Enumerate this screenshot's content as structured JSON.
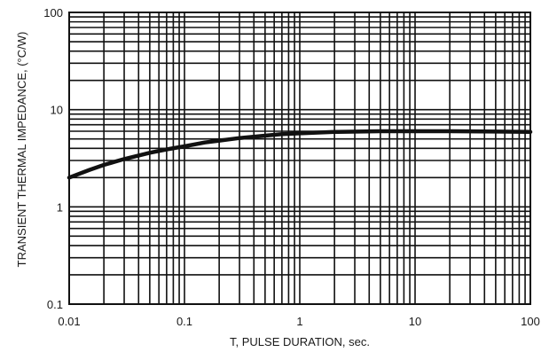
{
  "chart_data": {
    "type": "line",
    "title": "",
    "xlabel": "T, PULSE DURATION, sec.",
    "ylabel": "TRANSIENT THERMAL IMPEDANCE, (°C/W)",
    "x_scale": "log",
    "y_scale": "log",
    "xlim": [
      0.01,
      100
    ],
    "ylim": [
      0.1,
      100
    ],
    "x_ticks": [
      {
        "value": 0.01,
        "label": "0.01"
      },
      {
        "value": 0.1,
        "label": "0.1"
      },
      {
        "value": 1,
        "label": "1"
      },
      {
        "value": 10,
        "label": "10"
      },
      {
        "value": 100,
        "label": "100"
      }
    ],
    "y_ticks": [
      {
        "value": 0.1,
        "label": "0.1"
      },
      {
        "value": 1,
        "label": "1"
      },
      {
        "value": 10,
        "label": "10"
      },
      {
        "value": 100,
        "label": "100"
      }
    ],
    "grid": true,
    "series": [
      {
        "color": "#111111",
        "x": [
          0.01,
          0.015,
          0.02,
          0.03,
          0.05,
          0.07,
          0.1,
          0.15,
          0.2,
          0.3,
          0.5,
          0.7,
          1,
          2,
          5,
          10,
          20,
          50,
          100
        ],
        "y": [
          2.0,
          2.4,
          2.7,
          3.1,
          3.6,
          3.9,
          4.2,
          4.6,
          4.8,
          5.1,
          5.4,
          5.6,
          5.7,
          5.9,
          6.0,
          6.0,
          6.0,
          5.95,
          5.9
        ]
      }
    ]
  }
}
